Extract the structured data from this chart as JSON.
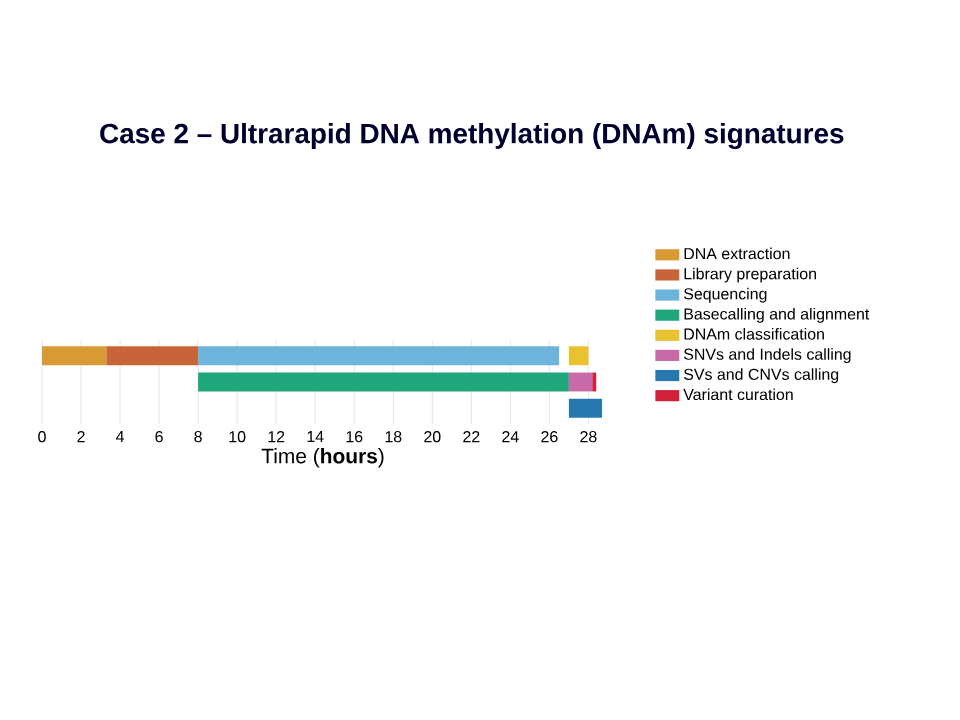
{
  "chart_data": {
    "type": "bar",
    "orientation": "horizontal",
    "title": "Case 2 – Ultrarapid DNA methylation (DNAm) signatures",
    "xlabel": "Time (**hours**)",
    "categories": [
      null,
      null,
      null
    ],
    "series": [
      {
        "name": "DNA extraction",
        "color": "#d89a35",
        "values": [
          3.3,
          null,
          null
        ],
        "base": [
          0,
          null,
          null
        ]
      },
      {
        "name": "Library preparation",
        "color": "#c8643a",
        "values": [
          4.7,
          null,
          null
        ],
        "base": [
          3.3,
          null,
          null
        ]
      },
      {
        "name": "Sequencing",
        "color": "#6cb4d9",
        "values": [
          18.5,
          null,
          null
        ],
        "base": [
          8,
          null,
          null
        ]
      },
      {
        "name": "Basecalling and alignment",
        "color": "#1fa67a",
        "values": [
          null,
          19,
          null
        ],
        "base": [
          null,
          8,
          null
        ]
      },
      {
        "name": "DNAm classification",
        "color": "#e8c230",
        "values": [
          1.0,
          null,
          null
        ],
        "base": [
          27,
          null,
          null
        ]
      },
      {
        "name": "SNVs and Indels calling",
        "color": "#c86aa8",
        "values": [
          null,
          1.2,
          null
        ],
        "base": [
          null,
          27,
          null
        ]
      },
      {
        "name": "SVs and CNVs calling",
        "color": "#2878b0",
        "values": [
          null,
          null,
          1.7
        ],
        "base": [
          null,
          null,
          27
        ]
      },
      {
        "name": "Variant curation",
        "color": "#d0203a",
        "values": [
          null,
          0.2,
          null
        ],
        "base": [
          null,
          28.2,
          null
        ]
      }
    ],
    "xlim": [
      0,
      28.8
    ],
    "xticks": [
      0,
      2,
      4,
      6,
      8,
      10,
      12,
      14,
      16,
      18,
      20,
      22,
      24,
      26,
      28
    ],
    "grid": "x",
    "legend": "right"
  }
}
